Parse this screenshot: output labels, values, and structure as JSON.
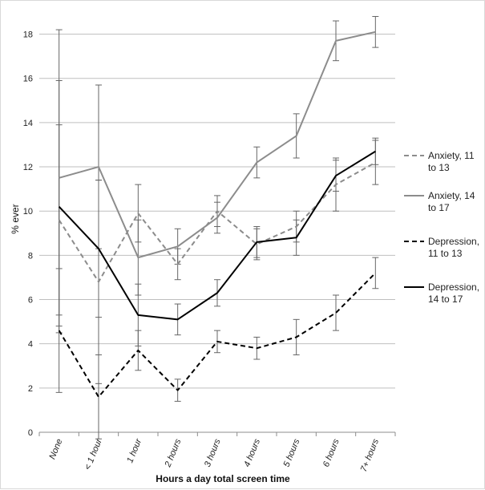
{
  "chart_data": {
    "type": "line",
    "title": "",
    "xlabel": "Hours a day total screen time",
    "ylabel": "% ever",
    "ylim": [
      0,
      19
    ],
    "yticks": [
      0,
      2,
      4,
      6,
      8,
      10,
      12,
      14,
      16,
      18
    ],
    "grid": "horizontal",
    "legend_position": "right",
    "categories": [
      "None",
      "< 1 hour",
      "1 hour",
      "2 hours",
      "3 hours",
      "4 hours",
      "5 hours",
      "6 hours",
      "7+ hours"
    ],
    "series": [
      {
        "name": "Anxiety, 11 to 13",
        "legend_lines": [
          "Anxiety, 11",
          "to 13"
        ],
        "color": "#8c8c8c",
        "dash": "dashed",
        "values": [
          9.6,
          6.8,
          9.9,
          7.6,
          10.0,
          8.5,
          9.3,
          11.2,
          12.2
        ],
        "error_low": [
          5.3,
          2.2,
          8.6,
          6.9,
          9.3,
          7.8,
          8.6,
          10.0,
          11.2
        ],
        "error_high": [
          13.9,
          11.4,
          11.2,
          8.3,
          10.7,
          9.2,
          10.0,
          12.4,
          13.2
        ]
      },
      {
        "name": "Anxiety, 14 to 17",
        "legend_lines": [
          "Anxiety, 14",
          "to 17"
        ],
        "color": "#8c8c8c",
        "dash": "solid",
        "values": [
          11.5,
          12.0,
          7.9,
          8.4,
          9.7,
          12.2,
          13.4,
          17.7,
          18.1
        ],
        "error_low": [
          4.8,
          8.3,
          6.2,
          7.6,
          9.0,
          11.5,
          12.4,
          16.8,
          17.4
        ],
        "error_high": [
          18.2,
          15.7,
          9.6,
          9.2,
          10.4,
          12.9,
          14.4,
          18.6,
          18.8
        ]
      },
      {
        "name": "Depression, 11 to 13",
        "legend_lines": [
          "Depression,",
          "11 to 13"
        ],
        "color": "#000000",
        "dash": "dashed",
        "values": [
          4.6,
          1.6,
          3.7,
          1.9,
          4.1,
          3.8,
          4.3,
          5.4,
          7.2
        ],
        "error_low": [
          1.8,
          -0.3,
          2.8,
          1.4,
          3.6,
          3.3,
          3.5,
          4.6,
          6.5
        ],
        "error_high": [
          7.4,
          3.5,
          4.6,
          2.4,
          4.6,
          4.3,
          5.1,
          6.2,
          7.9
        ]
      },
      {
        "name": "Depression, 14 to 17",
        "legend_lines": [
          "Depression,",
          "14 to 17"
        ],
        "color": "#000000",
        "dash": "solid",
        "values": [
          10.2,
          8.3,
          5.3,
          5.1,
          6.3,
          8.6,
          8.8,
          11.6,
          12.7
        ],
        "error_low": [
          4.5,
          5.2,
          3.9,
          4.4,
          5.7,
          7.9,
          8.0,
          10.9,
          12.1
        ],
        "error_high": [
          15.9,
          11.4,
          6.7,
          5.8,
          6.9,
          9.3,
          9.6,
          12.3,
          13.3
        ]
      }
    ]
  }
}
